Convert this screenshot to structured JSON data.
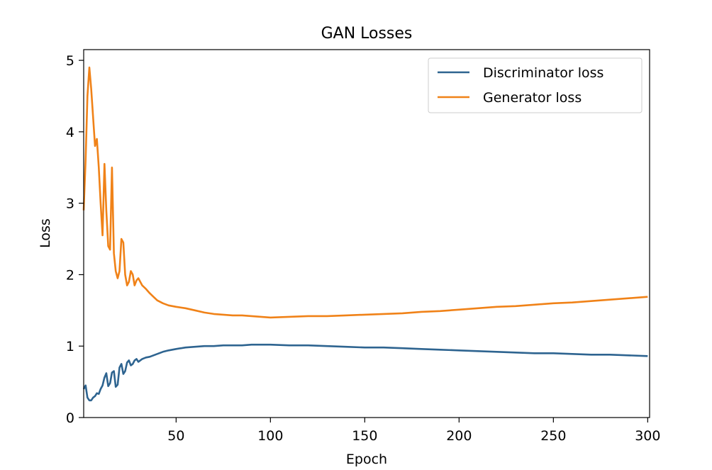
{
  "chart_data": {
    "type": "line",
    "title": "GAN Losses",
    "xlabel": "Epoch",
    "ylabel": "Loss",
    "xlim": [
      1,
      301
    ],
    "ylim": [
      0,
      5.15
    ],
    "xticks": [
      50,
      100,
      150,
      200,
      250,
      300
    ],
    "yticks": [
      0,
      1,
      2,
      3,
      4,
      5
    ],
    "grid": false,
    "legend_position": "top-right",
    "series": [
      {
        "name": "Discriminator loss",
        "color": "#2e6490",
        "x": [
          1,
          2,
          3,
          4,
          5,
          6,
          7,
          8,
          9,
          10,
          11,
          12,
          13,
          14,
          15,
          16,
          17,
          18,
          19,
          20,
          21,
          22,
          23,
          24,
          25,
          26,
          27,
          28,
          29,
          30,
          32,
          34,
          36,
          38,
          40,
          43,
          46,
          50,
          55,
          60,
          65,
          70,
          75,
          80,
          85,
          90,
          95,
          100,
          110,
          120,
          130,
          140,
          150,
          160,
          170,
          180,
          190,
          200,
          210,
          220,
          230,
          240,
          250,
          260,
          270,
          280,
          290,
          300
        ],
        "values": [
          0.4,
          0.45,
          0.28,
          0.24,
          0.24,
          0.28,
          0.3,
          0.34,
          0.33,
          0.4,
          0.45,
          0.56,
          0.62,
          0.44,
          0.48,
          0.63,
          0.65,
          0.43,
          0.46,
          0.7,
          0.75,
          0.61,
          0.65,
          0.77,
          0.8,
          0.73,
          0.75,
          0.8,
          0.82,
          0.78,
          0.82,
          0.84,
          0.85,
          0.87,
          0.89,
          0.92,
          0.94,
          0.96,
          0.98,
          0.99,
          1.0,
          1.0,
          1.01,
          1.01,
          1.01,
          1.02,
          1.02,
          1.02,
          1.01,
          1.01,
          1.0,
          0.99,
          0.98,
          0.98,
          0.97,
          0.96,
          0.95,
          0.94,
          0.93,
          0.92,
          0.91,
          0.9,
          0.9,
          0.89,
          0.88,
          0.88,
          0.87,
          0.86
        ]
      },
      {
        "name": "Generator loss",
        "color": "#f08218",
        "x": [
          1,
          2,
          3,
          4,
          5,
          6,
          7,
          8,
          9,
          10,
          11,
          12,
          13,
          14,
          15,
          16,
          17,
          18,
          19,
          20,
          21,
          22,
          23,
          24,
          25,
          26,
          27,
          28,
          29,
          30,
          32,
          34,
          36,
          38,
          40,
          43,
          46,
          50,
          55,
          60,
          65,
          70,
          75,
          80,
          85,
          90,
          95,
          100,
          110,
          120,
          130,
          140,
          150,
          160,
          170,
          180,
          190,
          200,
          210,
          220,
          230,
          240,
          250,
          260,
          270,
          280,
          290,
          300
        ],
        "values": [
          2.9,
          3.6,
          4.5,
          4.9,
          4.6,
          4.2,
          3.8,
          3.9,
          3.5,
          3.0,
          2.55,
          3.55,
          2.9,
          2.4,
          2.35,
          3.5,
          2.3,
          2.05,
          1.95,
          2.05,
          2.5,
          2.45,
          2.0,
          1.85,
          1.9,
          2.05,
          2.0,
          1.85,
          1.92,
          1.95,
          1.85,
          1.8,
          1.74,
          1.69,
          1.64,
          1.6,
          1.57,
          1.55,
          1.53,
          1.5,
          1.47,
          1.45,
          1.44,
          1.43,
          1.43,
          1.42,
          1.41,
          1.4,
          1.41,
          1.42,
          1.42,
          1.43,
          1.44,
          1.45,
          1.46,
          1.48,
          1.49,
          1.51,
          1.53,
          1.55,
          1.56,
          1.58,
          1.6,
          1.61,
          1.63,
          1.65,
          1.67,
          1.69
        ]
      }
    ]
  }
}
